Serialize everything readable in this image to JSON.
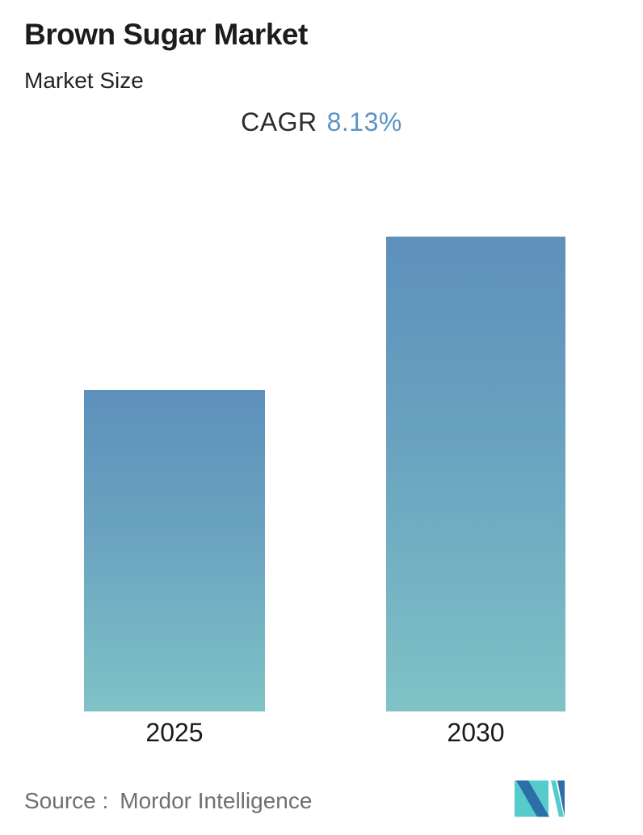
{
  "header": {
    "title": "Brown Sugar Market",
    "subtitle": "Market Size",
    "cagr_label": "CAGR",
    "cagr_value": "8.13%"
  },
  "chart_data": {
    "type": "bar",
    "title": "Brown Sugar Market",
    "subtitle": "Market Size",
    "annotation": {
      "label": "CAGR",
      "value": "8.13%",
      "cagr_pct": 8.13
    },
    "categories": [
      "2025",
      "2030"
    ],
    "values": [
      0.677,
      1.0
    ],
    "values_note": "No y-axis, gridlines or data labels shown; values are bar heights relative to the 2030 bar (ratio matches 1/1.0813^5 for 8.13% CAGR over 2025-2030)",
    "xlabel": "",
    "ylabel": "",
    "y_axis_shown": false,
    "gridlines": false,
    "legend": "none",
    "bar_gradient_top": "#5d90bb",
    "bar_gradient_bottom": "#7fc2c6"
  },
  "footer": {
    "source_label": "Source :",
    "source_value": "Mordor Intelligence",
    "logo": "mordor-intelligence-logo"
  },
  "colors": {
    "background": "#ffffff",
    "title_text": "#1c1c1c",
    "cagr_value_text": "#5b93c4",
    "axis_label_text": "#1a1a1a",
    "source_text": "#6f6f6f",
    "bar_gradient_top": "#5d90bb",
    "bar_gradient_bottom": "#7fc2c6",
    "logo_blue": "#2d6da8",
    "logo_teal": "#55cccb"
  }
}
